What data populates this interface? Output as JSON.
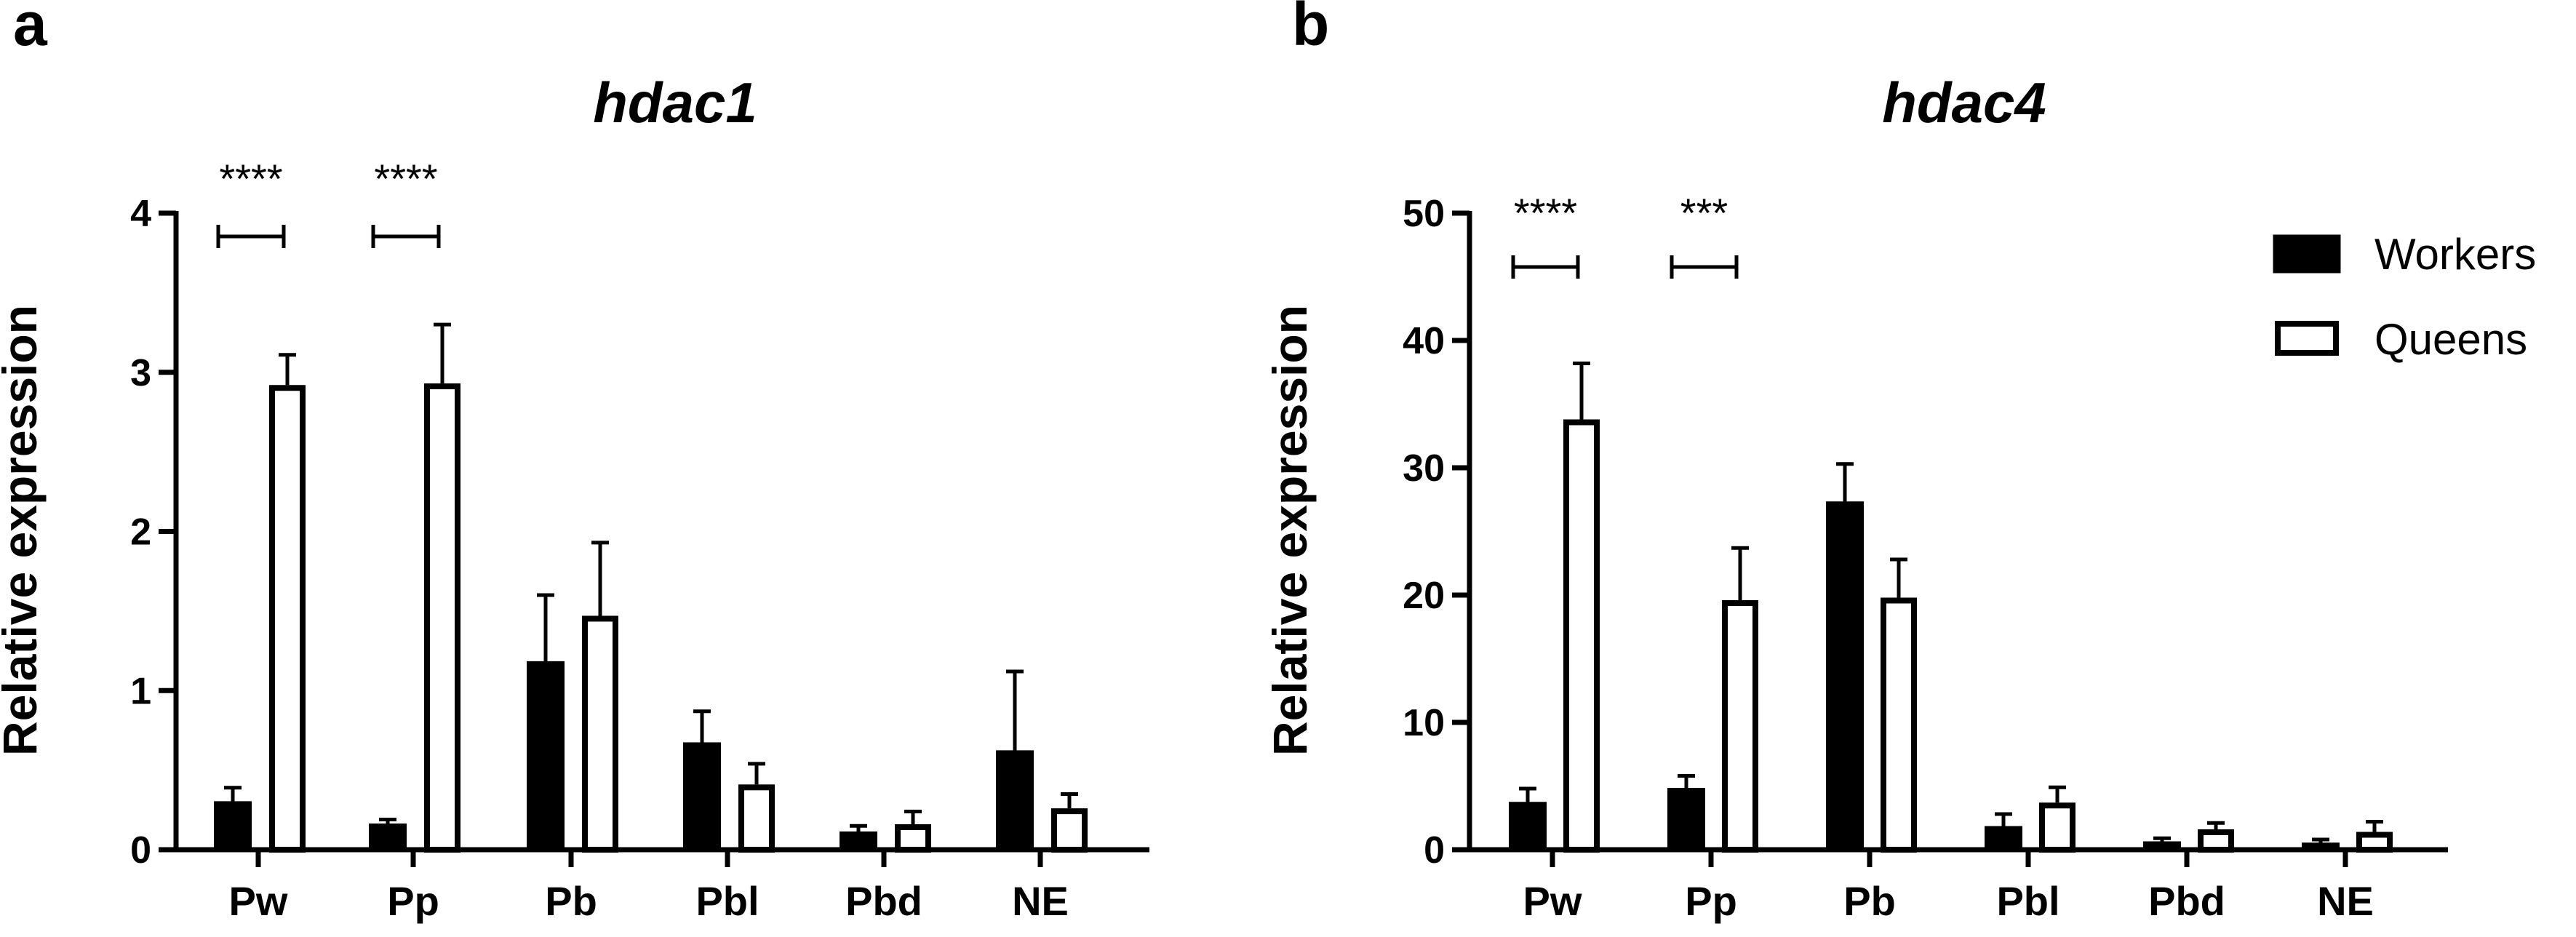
{
  "panels": [
    {
      "letter": "a",
      "title": "hdac1",
      "ylabel": "Relative expression",
      "ylim": [
        0,
        4
      ],
      "yticks": [
        "0",
        "1",
        "2",
        "3",
        "4"
      ]
    },
    {
      "letter": "b",
      "title": "hdac4",
      "ylabel": "Relative expression",
      "ylim": [
        0,
        50
      ],
      "yticks": [
        "0",
        "10",
        "20",
        "30",
        "40",
        "50"
      ]
    }
  ],
  "legend": {
    "workers_label": "Workers",
    "queens_label": "Queens",
    "workers_color": "#000000",
    "queens_color": "#ffffff"
  },
  "chart_data": [
    {
      "type": "bar",
      "title": "hdac1",
      "xlabel": "",
      "ylabel": "Relative expression",
      "ylim": [
        0,
        4
      ],
      "categories": [
        "Pw",
        "Pp",
        "Pb",
        "Pbl",
        "Pbd",
        "NE"
      ],
      "series": [
        {
          "name": "Workers",
          "values": [
            0.3,
            0.16,
            1.18,
            0.67,
            0.11,
            0.62
          ],
          "errors": [
            0.09,
            0.03,
            0.42,
            0.2,
            0.04,
            0.5
          ]
        },
        {
          "name": "Queens",
          "values": [
            2.92,
            2.93,
            1.47,
            0.41,
            0.16,
            0.26
          ],
          "errors": [
            0.19,
            0.37,
            0.46,
            0.13,
            0.08,
            0.09
          ]
        }
      ],
      "significance": [
        {
          "category": "Pw",
          "label": "****"
        },
        {
          "category": "Pp",
          "label": "****"
        }
      ]
    },
    {
      "type": "bar",
      "title": "hdac4",
      "xlabel": "",
      "ylabel": "Relative expression",
      "ylim": [
        0,
        50
      ],
      "categories": [
        "Pw",
        "Pp",
        "Pb",
        "Pbl",
        "Pbd",
        "NE"
      ],
      "series": [
        {
          "name": "Workers",
          "values": [
            3.7,
            4.8,
            27.3,
            1.8,
            0.6,
            0.5
          ],
          "errors": [
            1.1,
            1.0,
            3.0,
            1.0,
            0.3,
            0.3
          ]
        },
        {
          "name": "Queens",
          "values": [
            33.8,
            19.6,
            19.8,
            3.7,
            1.6,
            1.4
          ],
          "errors": [
            4.4,
            4.1,
            3.0,
            1.2,
            0.5,
            0.8
          ]
        }
      ],
      "significance": [
        {
          "category": "Pw",
          "label": "****"
        },
        {
          "category": "Pp",
          "label": "***"
        }
      ]
    }
  ]
}
